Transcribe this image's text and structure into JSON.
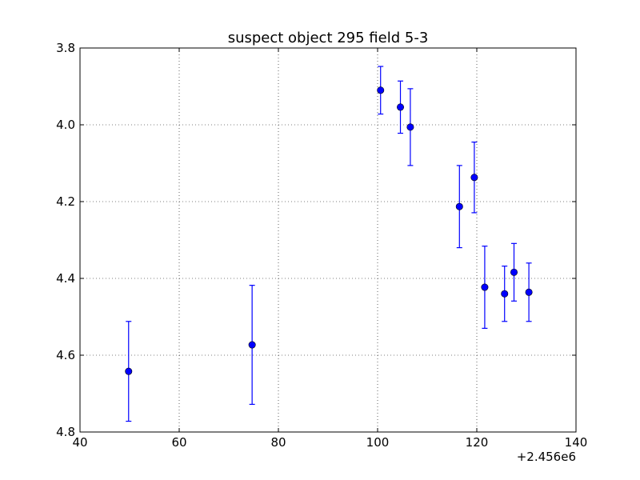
{
  "chart_data": {
    "type": "scatter",
    "title": "suspect object 295 field 5-3",
    "xlabel": "",
    "ylabel": "",
    "x_offset_label": "+2.456e6",
    "xlim": [
      40,
      140
    ],
    "ylim": [
      4.8,
      3.8
    ],
    "y_inverted": true,
    "xticks": [
      "40",
      "60",
      "80",
      "100",
      "120",
      "140"
    ],
    "yticks": [
      "3.8",
      "4.0",
      "4.2",
      "4.4",
      "4.6",
      "4.8"
    ],
    "grid": true,
    "series": [
      {
        "color": "#0000ff",
        "marker": "circle",
        "errorbars": true,
        "points": [
          {
            "x": 49.8,
            "y": 4.642,
            "err": 0.13
          },
          {
            "x": 74.7,
            "y": 4.573,
            "err": 0.155
          },
          {
            "x": 100.6,
            "y": 3.91,
            "err": 0.062
          },
          {
            "x": 104.6,
            "y": 3.954,
            "err": 0.068
          },
          {
            "x": 106.6,
            "y": 4.006,
            "err": 0.1
          },
          {
            "x": 116.5,
            "y": 4.213,
            "err": 0.107
          },
          {
            "x": 119.5,
            "y": 4.137,
            "err": 0.092
          },
          {
            "x": 121.6,
            "y": 4.423,
            "err": 0.107
          },
          {
            "x": 125.6,
            "y": 4.44,
            "err": 0.072
          },
          {
            "x": 127.5,
            "y": 4.384,
            "err": 0.075
          },
          {
            "x": 130.5,
            "y": 4.436,
            "err": 0.076
          }
        ]
      }
    ]
  }
}
